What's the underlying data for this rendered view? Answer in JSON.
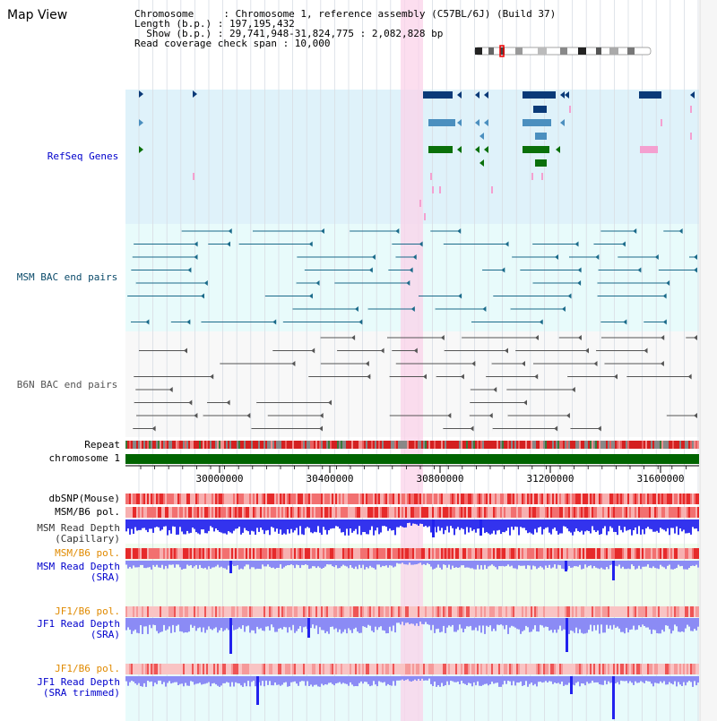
{
  "title": "Map View",
  "info": {
    "line1": "Chromosome     : Chromosome 1, reference assembly (C57BL/6J) (Build 37)",
    "line2": "Length (b.p.) : 197,195,432",
    "line3": "  Show (b.p.) : 29,741,948-31,824,775 : 2,082,828 bp",
    "line4": "Read coverage check span : 10,000"
  },
  "tracks": {
    "refseq": "RefSeq Genes",
    "msm_bac": "MSM BAC end pairs",
    "b6n_bac": "B6N BAC end pairs",
    "repeat": "Repeat",
    "chromosome": "chromosome 1",
    "dbsnp": "dbSNP(Mouse)",
    "msm_b6_pol_1": "MSM/B6 pol.",
    "msm_depth_cap_1": "MSM Read Depth",
    "msm_depth_cap_2": "(Capillary)",
    "msm_b6_pol_2": "MSM/B6 pol.",
    "msm_depth_sra_1": "MSM Read Depth",
    "msm_depth_sra_2": "(SRA)",
    "jf1_b6_pol_1": "JF1/B6 pol.",
    "jf1_depth_sra_1": "JF1 Read Depth",
    "jf1_depth_sra_2": "(SRA)",
    "jf1_b6_pol_2": "JF1/B6 pol.",
    "jf1_depth_trim_1": "JF1 Read Depth",
    "jf1_depth_trim_2": "(SRA trimmed)"
  },
  "axis": {
    "ticks": [
      "30000000",
      "30400000",
      "30800000",
      "31200000",
      "31600000"
    ]
  },
  "colors": {
    "refseq_bg": "#dff2fa",
    "bac_bg": "#e8fbfb",
    "gene_dark": "#0a3a78",
    "gene_mid": "#4b8fbf",
    "gene_green": "#0a700a",
    "pink": "#f4a0d0",
    "highlight": "#fbd3ea",
    "msm_bac_line": "#1a6a8a",
    "b6n_line": "#555555",
    "chromosome_bar": "#006400",
    "depth_blue": "#2222ee",
    "depth_light": "#8b8bf5",
    "pol_red": "#f24848",
    "label_blue": "#0000cc",
    "label_orange": "#e08a00"
  }
}
